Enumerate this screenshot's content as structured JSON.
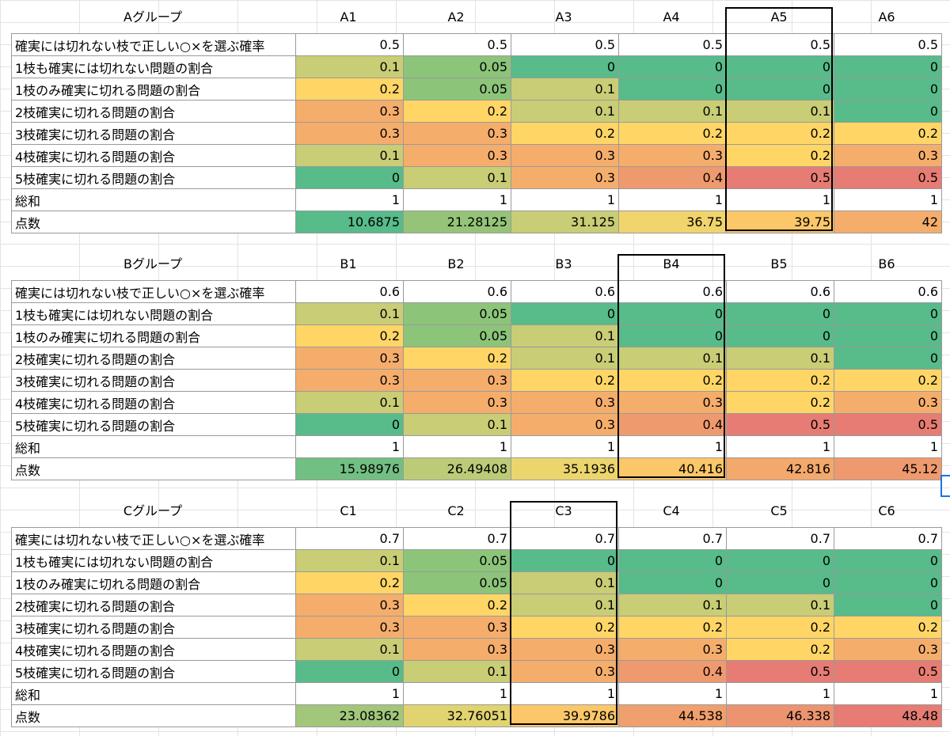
{
  "row_labels": [
    "確実には切れない枝で正しい○×を選ぶ確率",
    "1枝も確実には切れない問題の割合",
    "1枝のみ確実に切れる問題の割合",
    "2枝確実に切れる問題の割合",
    "3枝確実に切れる問題の割合",
    "4枝確実に切れる問題の割合",
    "5枝確実に切れる問題の割合",
    "総和",
    "点数"
  ],
  "colors": {
    "white": "#ffffff",
    "green": "#57bb8a",
    "green_light": "#8cc47a",
    "yellow_green": "#c8cd76",
    "yellow": "#ffd666",
    "yellow_mid": "#e9d46d",
    "orange_light": "#fbc769",
    "orange": "#f5ad6c",
    "orange_dark": "#ef9a6e",
    "red": "#e67c73"
  },
  "groups": [
    {
      "title": "Aグループ",
      "columns": [
        "A1",
        "A2",
        "A3",
        "A4",
        "A5",
        "A6"
      ],
      "highlight_column": 4,
      "rows": [
        [
          "0.5",
          "0.5",
          "0.5",
          "0.5",
          "0.5",
          "0.5"
        ],
        [
          "0.1",
          "0.05",
          "0",
          "0",
          "0",
          "0"
        ],
        [
          "0.2",
          "0.05",
          "0.1",
          "0",
          "0",
          "0"
        ],
        [
          "0.3",
          "0.2",
          "0.1",
          "0.1",
          "0.1",
          "0"
        ],
        [
          "0.3",
          "0.3",
          "0.2",
          "0.2",
          "0.2",
          "0.2"
        ],
        [
          "0.1",
          "0.3",
          "0.3",
          "0.3",
          "0.2",
          "0.3"
        ],
        [
          "0",
          "0.1",
          "0.3",
          "0.4",
          "0.5",
          "0.5"
        ],
        [
          "1",
          "1",
          "1",
          "1",
          "1",
          "1"
        ],
        [
          "10.6875",
          "21.28125",
          "31.125",
          "36.75",
          "39.75",
          "42"
        ]
      ],
      "score_colors": [
        "#57bb8a",
        "#95c479",
        "#c8cd76",
        "#f2d46d",
        "#fbc769",
        "#f5ad6c"
      ]
    },
    {
      "title": "Bグループ",
      "columns": [
        "B1",
        "B2",
        "B3",
        "B4",
        "B5",
        "B6"
      ],
      "highlight_column": 3,
      "rows": [
        [
          "0.6",
          "0.6",
          "0.6",
          "0.6",
          "0.6",
          "0.6"
        ],
        [
          "0.1",
          "0.05",
          "0",
          "0",
          "0",
          "0"
        ],
        [
          "0.2",
          "0.05",
          "0.1",
          "0",
          "0",
          "0"
        ],
        [
          "0.3",
          "0.2",
          "0.1",
          "0.1",
          "0.1",
          "0"
        ],
        [
          "0.3",
          "0.3",
          "0.2",
          "0.2",
          "0.2",
          "0.2"
        ],
        [
          "0.1",
          "0.3",
          "0.3",
          "0.3",
          "0.2",
          "0.3"
        ],
        [
          "0",
          "0.1",
          "0.3",
          "0.4",
          "0.5",
          "0.5"
        ],
        [
          "1",
          "1",
          "1",
          "1",
          "1",
          "1"
        ],
        [
          "15.98976",
          "26.49408",
          "35.1936",
          "40.416",
          "42.816",
          "45.12"
        ]
      ],
      "score_colors": [
        "#72bf83",
        "#bccb77",
        "#ecd56d",
        "#fbc769",
        "#f3a86c",
        "#ef9a6e"
      ]
    },
    {
      "title": "Cグループ",
      "columns": [
        "C1",
        "C2",
        "C3",
        "C4",
        "C5",
        "C6"
      ],
      "highlight_column": 2,
      "rows": [
        [
          "0.7",
          "0.7",
          "0.7",
          "0.7",
          "0.7",
          "0.7"
        ],
        [
          "0.1",
          "0.05",
          "0",
          "0",
          "0",
          "0"
        ],
        [
          "0.2",
          "0.05",
          "0.1",
          "0",
          "0",
          "0"
        ],
        [
          "0.3",
          "0.2",
          "0.1",
          "0.1",
          "0.1",
          "0"
        ],
        [
          "0.3",
          "0.3",
          "0.2",
          "0.2",
          "0.2",
          "0.2"
        ],
        [
          "0.1",
          "0.3",
          "0.3",
          "0.3",
          "0.2",
          "0.3"
        ],
        [
          "0",
          "0.1",
          "0.3",
          "0.4",
          "0.5",
          "0.5"
        ],
        [
          "1",
          "1",
          "1",
          "1",
          "1",
          "1"
        ],
        [
          "23.08362",
          "32.76051",
          "39.9786",
          "44.538",
          "46.338",
          "48.48"
        ]
      ],
      "score_colors": [
        "#a2c67a",
        "#e1d36f",
        "#fbc769",
        "#f0a06d",
        "#ec9470",
        "#e67c73"
      ]
    }
  ],
  "cell_colors": [
    [
      "#ffffff",
      "#ffffff",
      "#ffffff",
      "#ffffff",
      "#ffffff",
      "#ffffff"
    ],
    [
      "#c8cd76",
      "#8cc47a",
      "#57bb8a",
      "#57bb8a",
      "#57bb8a",
      "#57bb8a"
    ],
    [
      "#ffd666",
      "#8cc47a",
      "#c8cd76",
      "#57bb8a",
      "#57bb8a",
      "#57bb8a"
    ],
    [
      "#f5ad6c",
      "#ffd666",
      "#c8cd76",
      "#c8cd76",
      "#c8cd76",
      "#57bb8a"
    ],
    [
      "#f5ad6c",
      "#f5ad6c",
      "#ffd666",
      "#ffd666",
      "#ffd666",
      "#ffd666"
    ],
    [
      "#c8cd76",
      "#f5ad6c",
      "#f5ad6c",
      "#f5ad6c",
      "#ffd666",
      "#f5ad6c"
    ],
    [
      "#57bb8a",
      "#c8cd76",
      "#f5ad6c",
      "#ef9a6e",
      "#e67c73",
      "#e67c73"
    ],
    [
      "#ffffff",
      "#ffffff",
      "#ffffff",
      "#ffffff",
      "#ffffff",
      "#ffffff"
    ]
  ]
}
